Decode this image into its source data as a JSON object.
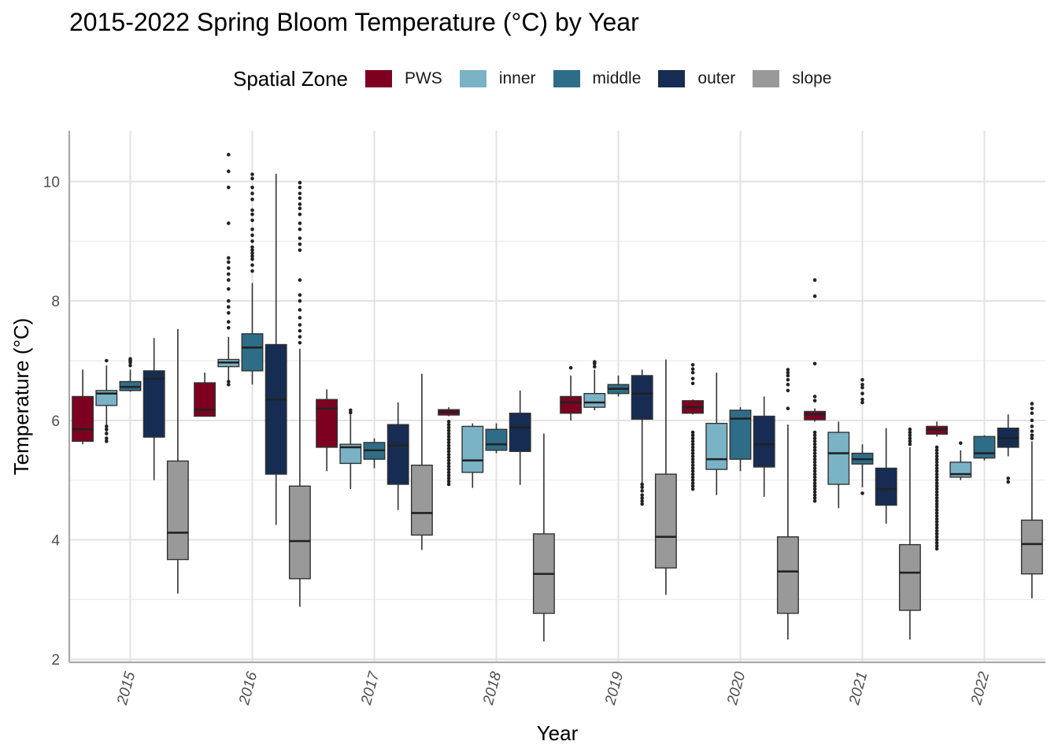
{
  "chart_data": {
    "type": "boxplot",
    "title": "2015-2022 Spring Bloom Temperature (°C) by Year",
    "xlabel": "Year",
    "ylabel": "Temperature (°C)",
    "ylim": [
      1.95,
      10.85
    ],
    "y_ticks": [
      2,
      4,
      6,
      8,
      10
    ],
    "categories": [
      "2015",
      "2016",
      "2017",
      "2018",
      "2019",
      "2020",
      "2021",
      "2022"
    ],
    "legend": {
      "title": "Spatial Zone",
      "position": "top"
    },
    "grid": true,
    "colors": {
      "PWS": "#7e0021",
      "inner": "#7ab3c6",
      "middle": "#2e6d87",
      "outer": "#162c52",
      "slope": "#999999"
    },
    "series": [
      {
        "name": "PWS",
        "boxes": [
          {
            "year": "2015",
            "min": 5.6,
            "q1": 5.65,
            "median": 5.85,
            "q3": 6.4,
            "max": 6.85,
            "outliers": []
          },
          {
            "year": "2016",
            "min": 6.07,
            "q1": 6.07,
            "median": 6.18,
            "q3": 6.63,
            "max": 6.8,
            "outliers": []
          },
          {
            "year": "2017",
            "min": 5.15,
            "q1": 5.55,
            "median": 6.2,
            "q3": 6.35,
            "max": 6.52,
            "outliers": []
          },
          {
            "year": "2018",
            "min": 6.07,
            "q1": 6.09,
            "median": 6.14,
            "q3": 6.18,
            "max": 6.22,
            "outliers": []
          },
          {
            "year": "2019",
            "min": 6.0,
            "q1": 6.12,
            "median": 6.3,
            "q3": 6.4,
            "max": 6.75,
            "outliers": [
              6.88
            ]
          },
          {
            "year": "2020",
            "min": 6.1,
            "q1": 6.12,
            "median": 6.22,
            "q3": 6.33,
            "max": 6.35,
            "outliers": [
              6.62,
              6.7,
              6.8,
              6.86,
              6.93
            ]
          },
          {
            "year": "2021",
            "min": 5.98,
            "q1": 6.01,
            "median": 6.1,
            "q3": 6.15,
            "max": 6.2,
            "outliers": [
              6.33,
              6.4,
              6.95,
              8.08,
              8.35
            ]
          },
          {
            "year": "2022",
            "min": 5.73,
            "q1": 5.77,
            "median": 5.85,
            "q3": 5.9,
            "max": 5.98,
            "outliers": []
          }
        ]
      },
      {
        "name": "inner",
        "boxes": [
          {
            "year": "2015",
            "min": 5.75,
            "q1": 6.25,
            "median": 6.45,
            "q3": 6.5,
            "max": 6.92,
            "outliers": [
              5.65,
              5.7,
              5.78,
              5.85,
              5.9,
              7.0
            ]
          },
          {
            "year": "2016",
            "min": 6.6,
            "q1": 6.9,
            "median": 6.97,
            "q3": 7.02,
            "max": 7.4,
            "outliers": [
              6.6,
              6.65,
              7.55,
              7.65,
              7.8,
              7.9,
              8.0,
              8.2,
              8.35,
              8.45,
              8.55,
              8.65,
              8.72,
              9.3,
              9.9,
              10.17,
              10.45
            ]
          },
          {
            "year": "2017",
            "min": 4.85,
            "q1": 5.28,
            "median": 5.55,
            "q3": 5.6,
            "max": 6.1,
            "outliers": [
              6.13,
              6.17
            ]
          },
          {
            "year": "2018",
            "min": 4.87,
            "q1": 5.13,
            "median": 5.33,
            "q3": 5.9,
            "max": 5.95,
            "outliers": []
          },
          {
            "year": "2019",
            "min": 6.17,
            "q1": 6.22,
            "median": 6.3,
            "q3": 6.45,
            "max": 6.85,
            "outliers": [
              6.9,
              6.95,
              6.98
            ]
          },
          {
            "year": "2020",
            "min": 4.75,
            "q1": 5.18,
            "median": 5.35,
            "q3": 5.95,
            "max": 6.8,
            "outliers": []
          },
          {
            "year": "2021",
            "min": 4.53,
            "q1": 4.93,
            "median": 5.45,
            "q3": 5.8,
            "max": 5.98,
            "outliers": []
          },
          {
            "year": "2022",
            "min": 5.0,
            "q1": 5.05,
            "median": 5.1,
            "q3": 5.3,
            "max": 5.5,
            "outliers": [
              5.62
            ]
          }
        ]
      },
      {
        "name": "middle",
        "boxes": [
          {
            "year": "2015",
            "min": 6.48,
            "q1": 6.5,
            "median": 6.56,
            "q3": 6.65,
            "max": 6.85,
            "outliers": [
              6.92,
              6.97,
              7.0,
              7.03
            ]
          },
          {
            "year": "2016",
            "min": 6.6,
            "q1": 6.83,
            "median": 7.22,
            "q3": 7.45,
            "max": 8.3,
            "outliers": [
              8.5,
              8.6,
              8.7,
              8.75,
              8.8,
              8.85,
              8.9,
              9.0,
              9.1,
              9.2,
              9.35,
              9.45,
              9.52,
              9.7,
              9.8,
              9.9,
              10.05,
              10.12
            ]
          },
          {
            "year": "2017",
            "min": 5.2,
            "q1": 5.35,
            "median": 5.5,
            "q3": 5.63,
            "max": 5.7,
            "outliers": []
          },
          {
            "year": "2018",
            "min": 5.45,
            "q1": 5.5,
            "median": 5.6,
            "q3": 5.85,
            "max": 5.95,
            "outliers": []
          },
          {
            "year": "2019",
            "min": 6.4,
            "q1": 6.45,
            "median": 6.53,
            "q3": 6.6,
            "max": 6.75,
            "outliers": []
          },
          {
            "year": "2020",
            "min": 5.15,
            "q1": 5.35,
            "median": 6.03,
            "q3": 6.17,
            "max": 6.22,
            "outliers": []
          },
          {
            "year": "2021",
            "min": 4.88,
            "q1": 5.27,
            "median": 5.35,
            "q3": 5.45,
            "max": 5.6,
            "outliers": [
              4.78,
              6.3,
              6.35,
              6.45,
              6.55,
              6.6,
              6.68
            ]
          },
          {
            "year": "2022",
            "min": 5.33,
            "q1": 5.37,
            "median": 5.45,
            "q3": 5.73,
            "max": 5.75,
            "outliers": []
          }
        ]
      },
      {
        "name": "outer",
        "boxes": [
          {
            "year": "2015",
            "min": 5.0,
            "q1": 5.72,
            "median": 6.7,
            "q3": 6.83,
            "max": 7.38,
            "outliers": []
          },
          {
            "year": "2016",
            "min": 4.25,
            "q1": 5.1,
            "median": 6.35,
            "q3": 7.27,
            "max": 10.13,
            "outliers": []
          },
          {
            "year": "2017",
            "min": 4.5,
            "q1": 4.93,
            "median": 5.58,
            "q3": 5.93,
            "max": 6.3,
            "outliers": []
          },
          {
            "year": "2018",
            "min": 4.92,
            "q1": 5.48,
            "median": 5.88,
            "q3": 6.12,
            "max": 6.5,
            "outliers": []
          },
          {
            "year": "2019",
            "min": 4.95,
            "q1": 6.02,
            "median": 6.45,
            "q3": 6.75,
            "max": 6.85,
            "outliers": [
              4.6,
              4.65,
              4.7,
              4.75,
              4.82,
              4.88,
              4.93
            ]
          },
          {
            "year": "2020",
            "min": 4.72,
            "q1": 5.22,
            "median": 5.6,
            "q3": 6.07,
            "max": 6.4,
            "outliers": []
          },
          {
            "year": "2021",
            "min": 4.27,
            "q1": 4.58,
            "median": 4.85,
            "q3": 5.2,
            "max": 5.87,
            "outliers": []
          },
          {
            "year": "2022",
            "min": 5.4,
            "q1": 5.55,
            "median": 5.7,
            "q3": 5.87,
            "max": 6.1,
            "outliers": [
              4.97,
              5.03
            ]
          }
        ]
      },
      {
        "name": "slope",
        "boxes": [
          {
            "year": "2015",
            "min": 3.1,
            "q1": 3.67,
            "median": 4.12,
            "q3": 5.32,
            "max": 7.53,
            "outliers": []
          },
          {
            "year": "2016",
            "min": 2.88,
            "q1": 3.35,
            "median": 3.98,
            "q3": 4.9,
            "max": 7.2,
            "outliers": [
              7.3,
              7.4,
              7.5,
              7.6,
              7.72,
              7.85,
              8.0,
              8.1,
              8.35,
              8.85,
              8.95,
              9.05,
              9.2,
              9.3,
              9.45,
              9.55,
              9.62,
              9.72,
              9.8,
              9.9,
              9.98
            ]
          },
          {
            "year": "2017",
            "min": 3.83,
            "q1": 4.08,
            "median": 4.45,
            "q3": 5.25,
            "max": 6.78,
            "outliers": []
          },
          {
            "year": "2018",
            "min": 2.3,
            "q1": 2.77,
            "median": 3.43,
            "q3": 4.1,
            "max": 5.78,
            "outliers": []
          },
          {
            "year": "2019",
            "min": 3.08,
            "q1": 3.53,
            "median": 4.05,
            "q3": 5.1,
            "max": 7.02,
            "outliers": []
          },
          {
            "year": "2020",
            "min": 2.33,
            "q1": 2.77,
            "median": 3.47,
            "q3": 4.05,
            "max": 5.93,
            "outliers": [
              6.2,
              6.5,
              6.6,
              6.68,
              6.75,
              6.8,
              6.85
            ]
          },
          {
            "year": "2021",
            "min": 2.33,
            "q1": 2.82,
            "median": 3.45,
            "q3": 3.92,
            "max": 5.55,
            "outliers": [
              5.6,
              5.65,
              5.7,
              5.75,
              5.8,
              5.85
            ]
          },
          {
            "year": "2022",
            "min": 3.02,
            "q1": 3.43,
            "median": 3.93,
            "q3": 4.33,
            "max": 5.65,
            "outliers": [
              5.7,
              5.75,
              5.82,
              5.9,
              6.0,
              6.12,
              6.2,
              6.28
            ]
          }
        ]
      }
    ],
    "dense_outliers": [
      {
        "series": "PWS",
        "year": "2018",
        "from": 4.93,
        "to": 6.0,
        "step": 0.05
      },
      {
        "series": "PWS",
        "year": "2020",
        "from": 4.85,
        "to": 5.8,
        "step": 0.05
      },
      {
        "series": "PWS",
        "year": "2021",
        "from": 4.65,
        "to": 5.8,
        "step": 0.05
      },
      {
        "series": "PWS",
        "year": "2022",
        "from": 3.85,
        "to": 5.55,
        "step": 0.05
      }
    ]
  }
}
